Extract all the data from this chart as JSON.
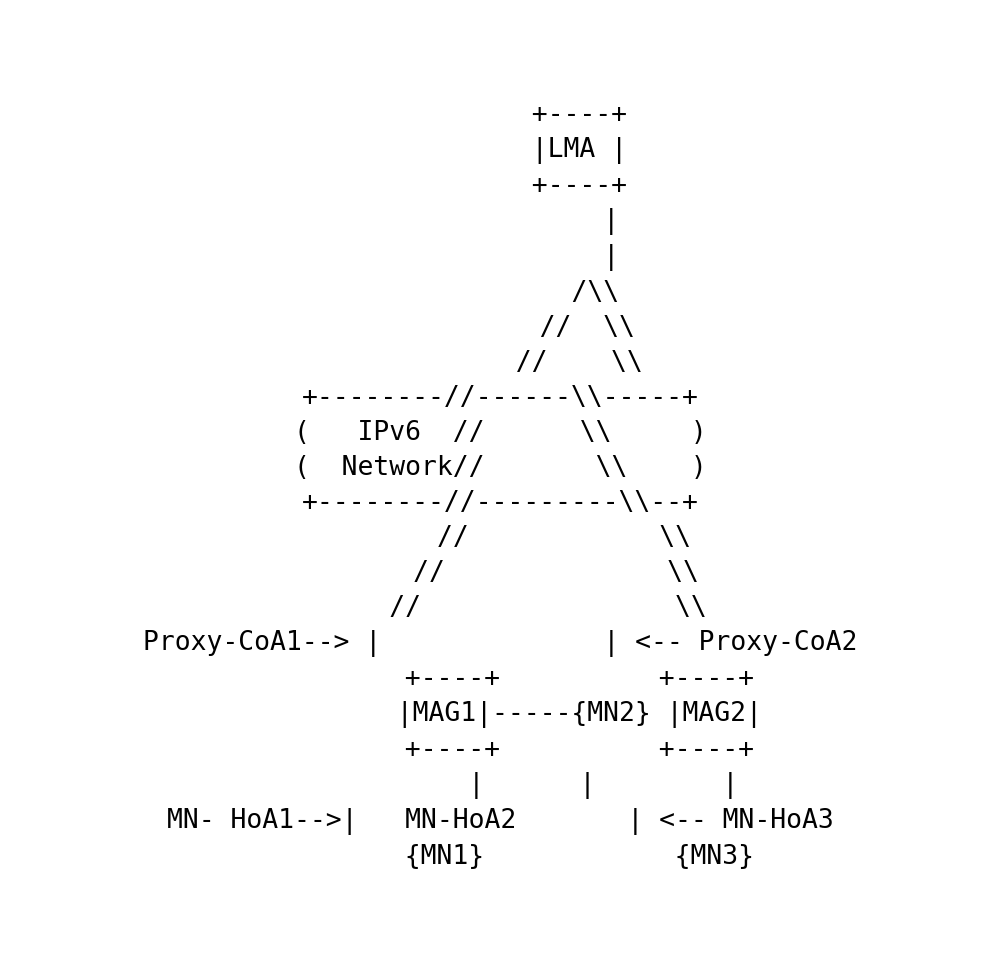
{
  "background_color": "#ffffff",
  "text_color": "#000000",
  "figsize": [
    10.0,
    9.71
  ],
  "dpi": 100,
  "font_size": 19,
  "font_family": "DejaVu Sans Mono",
  "diagram_lines": [
    "          +----+          ",
    "          |LMA |          ",
    "          +----+          ",
    "              |           ",
    "              |           ",
    "            /\\\\\\\\        ",
    "           //  \\\\\\\\      ",
    "          //    \\\\       ",
    "+--------//------\\\\----+ ",
    "(   IPv6  //      \\\\    )",
    "(  Network//       \\\\   )",
    "+--------//---------\\\\--+",
    "        //            \\\\  ",
    "       //              \\\\ ",
    "      //                \\ ",
    "Proxy-CoA1--> |          | <-- Proxy-CoA2",
    "          +----+      +----+",
    "          |MAG1|-----{MN2} |MAG2|",
    "          +----+      +----+",
    "             |    |      |  ",
    "MN- HoA1-->|   MN-HoA2    | <-- MN-HoA3",
    "          {MN1}         {MN3}"
  ]
}
